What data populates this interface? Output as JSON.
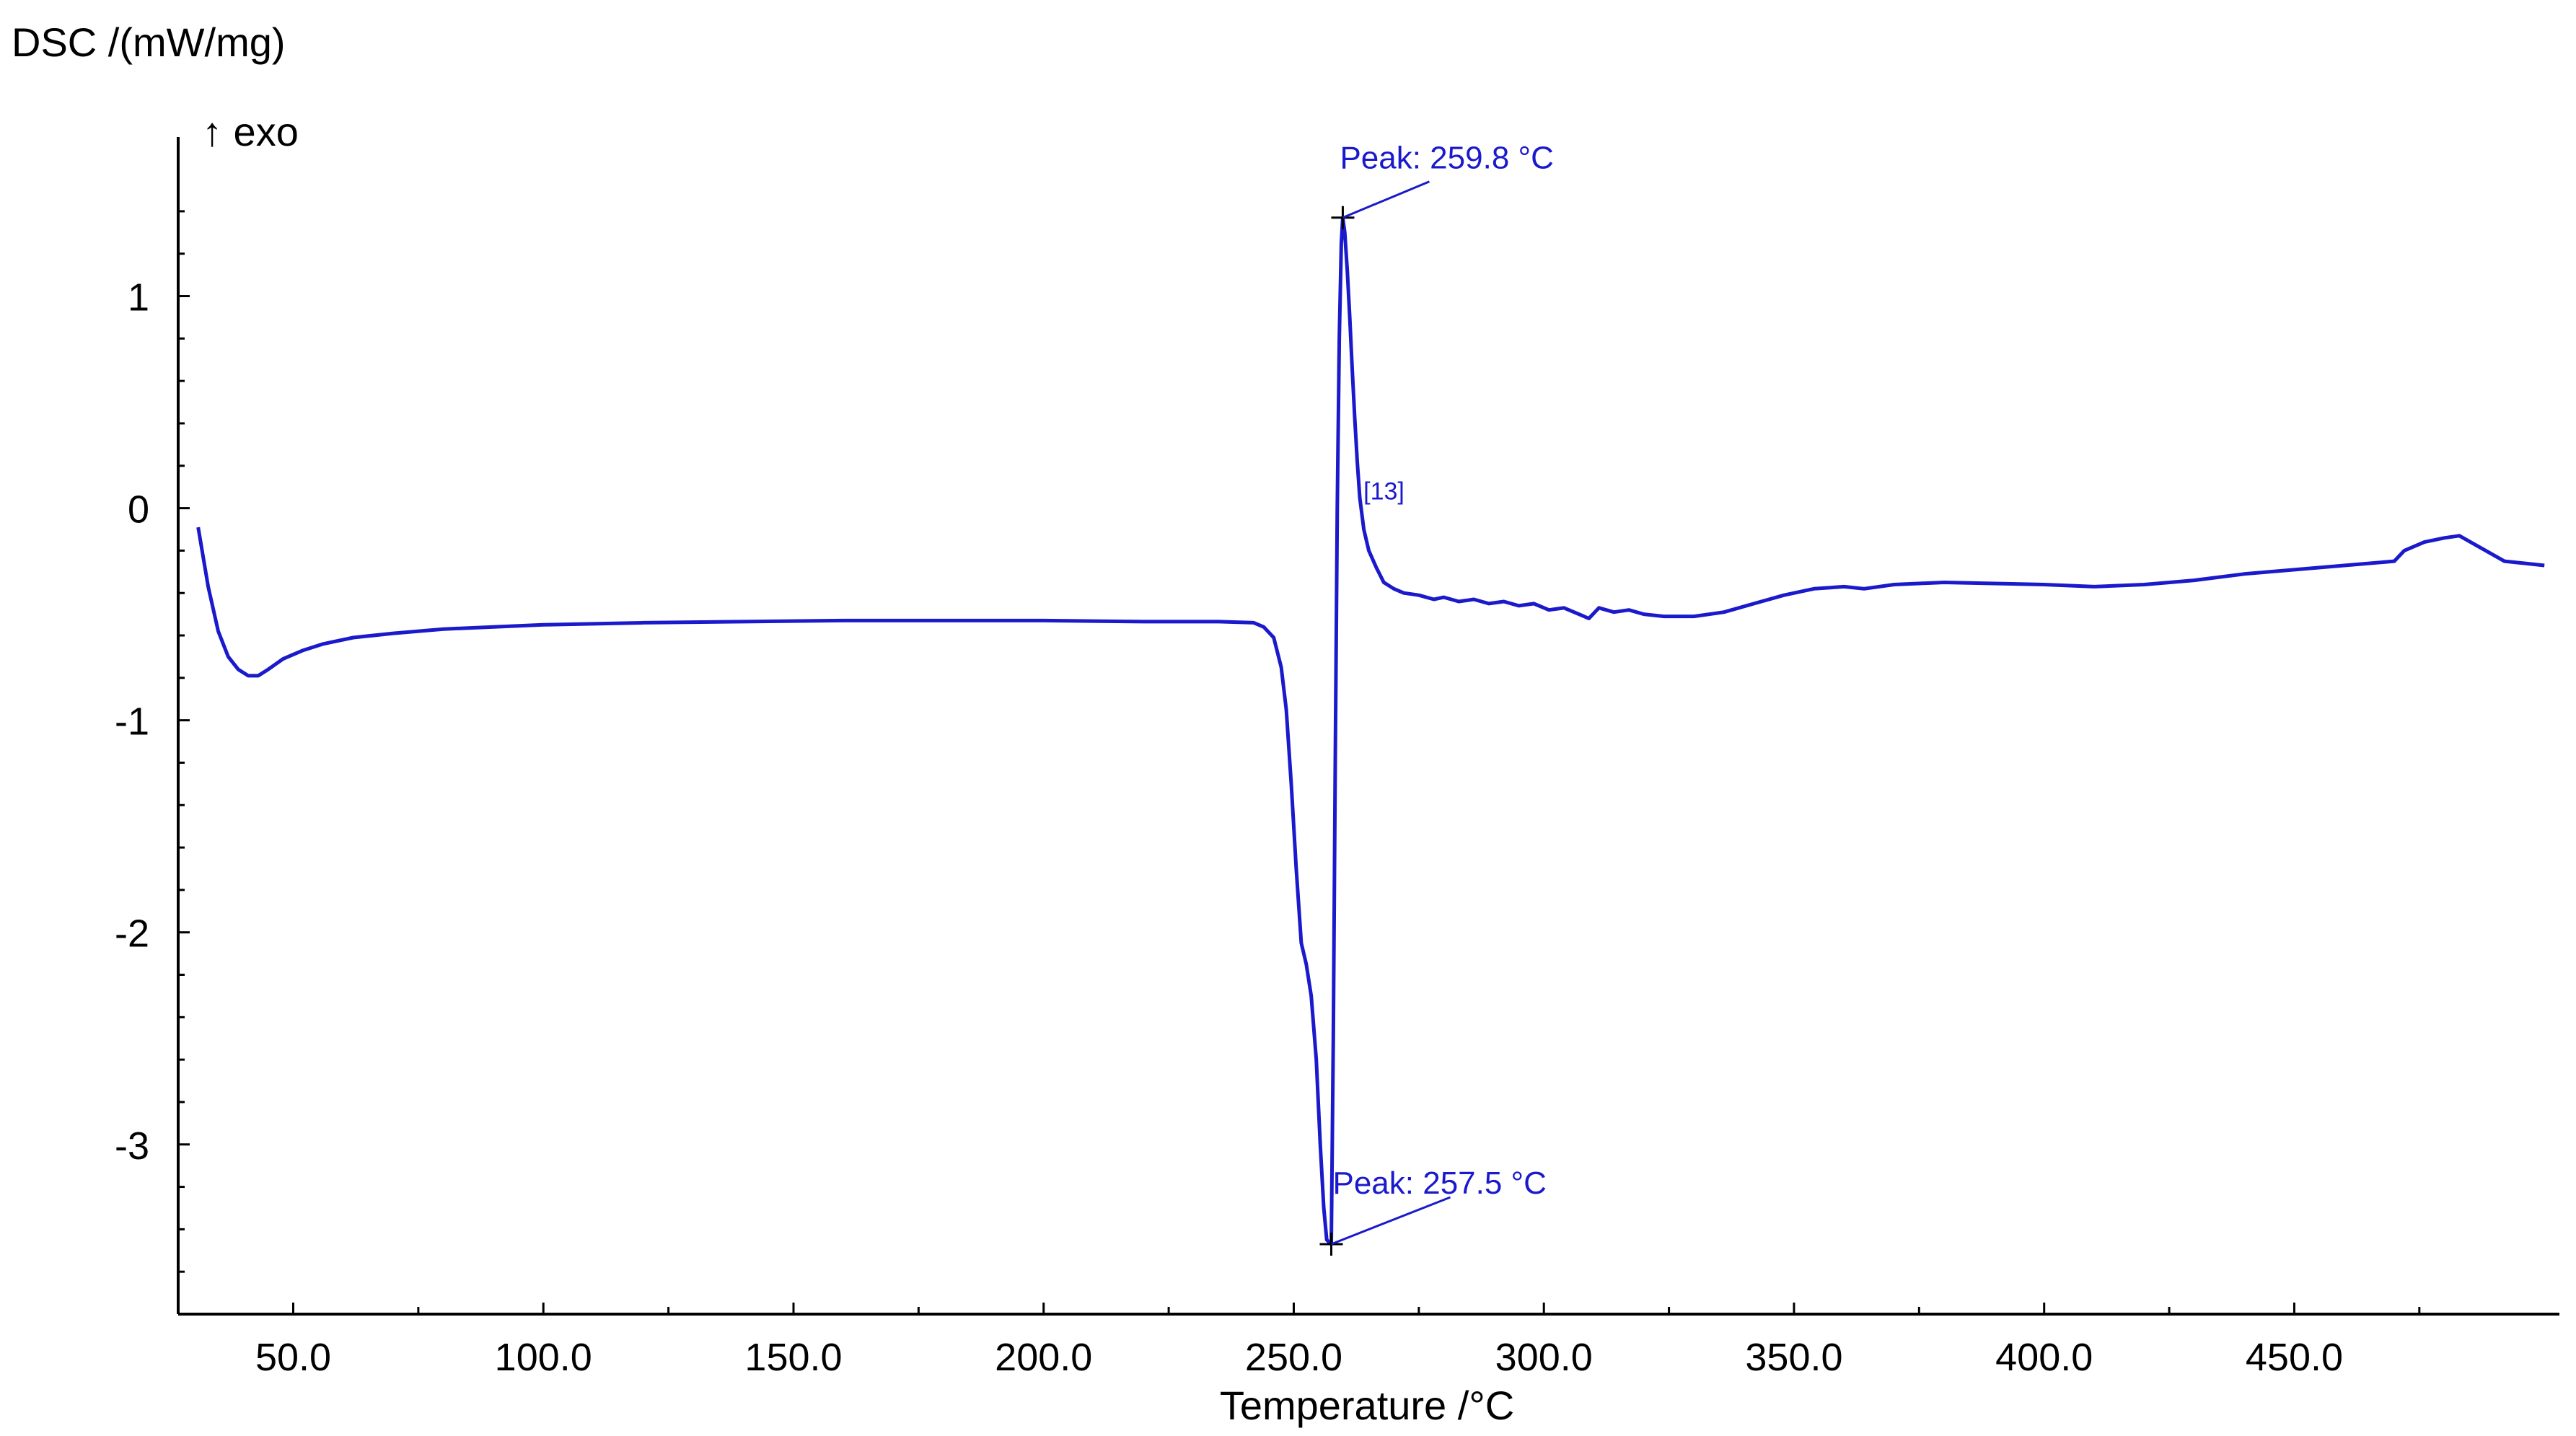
{
  "chart_data": {
    "type": "line",
    "ylabel": "DSC /(mW/mg)",
    "xlabel": "Temperature /°C",
    "direction_label": "↑ exo",
    "xlim": [
      27,
      503
    ],
    "ylim": [
      -3.8,
      1.75
    ],
    "x_ticks": [
      50.0,
      100.0,
      150.0,
      200.0,
      250.0,
      300.0,
      350.0,
      400.0,
      450.0
    ],
    "x_tick_labels": [
      "50.0",
      "100.0",
      "150.0",
      "200.0",
      "250.0",
      "300.0",
      "350.0",
      "400.0",
      "450.0"
    ],
    "y_ticks": [
      1,
      0,
      -1,
      -2,
      -3
    ],
    "y_tick_labels": [
      "1",
      "0",
      "-1",
      "-2",
      "-3"
    ],
    "grid": false,
    "line_color": "#1a1acc",
    "annotations": [
      {
        "text": "Peak: 259.8 °C",
        "x": 259.8,
        "y": 1.37
      },
      {
        "text": "Peak: 257.5 °C",
        "x": 257.5,
        "y": -3.47
      }
    ],
    "segment_marker": {
      "text": "[13]",
      "x": 262.5,
      "y": 0.0
    },
    "series": [
      {
        "points": [
          [
            31,
            -0.09
          ],
          [
            33,
            -0.37
          ],
          [
            35,
            -0.58
          ],
          [
            37,
            -0.7
          ],
          [
            39,
            -0.76
          ],
          [
            41,
            -0.79
          ],
          [
            43,
            -0.79
          ],
          [
            45,
            -0.76
          ],
          [
            48,
            -0.71
          ],
          [
            52,
            -0.67
          ],
          [
            56,
            -0.64
          ],
          [
            62,
            -0.61
          ],
          [
            70,
            -0.59
          ],
          [
            80,
            -0.57
          ],
          [
            90,
            -0.56
          ],
          [
            100,
            -0.55
          ],
          [
            120,
            -0.54
          ],
          [
            140,
            -0.535
          ],
          [
            160,
            -0.53
          ],
          [
            180,
            -0.53
          ],
          [
            200,
            -0.53
          ],
          [
            220,
            -0.535
          ],
          [
            235,
            -0.535
          ],
          [
            242,
            -0.54
          ],
          [
            244,
            -0.56
          ],
          [
            246,
            -0.61
          ],
          [
            247.5,
            -0.75
          ],
          [
            248.5,
            -0.95
          ],
          [
            249.5,
            -1.3
          ],
          [
            250.5,
            -1.7
          ],
          [
            251.5,
            -2.05
          ],
          [
            252.5,
            -2.15
          ],
          [
            253.5,
            -2.3
          ],
          [
            254.5,
            -2.6
          ],
          [
            255.3,
            -3.0
          ],
          [
            256.0,
            -3.3
          ],
          [
            256.6,
            -3.45
          ],
          [
            257.5,
            -3.47
          ],
          [
            257.9,
            -2.5
          ],
          [
            258.3,
            -1.2
          ],
          [
            258.7,
            0.0
          ],
          [
            259.1,
            0.8
          ],
          [
            259.5,
            1.25
          ],
          [
            259.8,
            1.37
          ],
          [
            260.2,
            1.3
          ],
          [
            260.7,
            1.12
          ],
          [
            261.2,
            0.9
          ],
          [
            261.7,
            0.65
          ],
          [
            262.2,
            0.42
          ],
          [
            262.7,
            0.22
          ],
          [
            263.2,
            0.05
          ],
          [
            264,
            -0.1
          ],
          [
            265,
            -0.2
          ],
          [
            266.5,
            -0.28
          ],
          [
            268,
            -0.35
          ],
          [
            270,
            -0.38
          ],
          [
            272,
            -0.4
          ],
          [
            275,
            -0.41
          ],
          [
            278,
            -0.43
          ],
          [
            280,
            -0.42
          ],
          [
            283,
            -0.44
          ],
          [
            286,
            -0.43
          ],
          [
            289,
            -0.45
          ],
          [
            292,
            -0.44
          ],
          [
            295,
            -0.46
          ],
          [
            298,
            -0.45
          ],
          [
            301,
            -0.48
          ],
          [
            304,
            -0.47
          ],
          [
            307,
            -0.5
          ],
          [
            309,
            -0.52
          ],
          [
            311,
            -0.47
          ],
          [
            314,
            -0.49
          ],
          [
            317,
            -0.48
          ],
          [
            320,
            -0.5
          ],
          [
            324,
            -0.51
          ],
          [
            330,
            -0.51
          ],
          [
            336,
            -0.49
          ],
          [
            342,
            -0.45
          ],
          [
            348,
            -0.41
          ],
          [
            354,
            -0.38
          ],
          [
            360,
            -0.37
          ],
          [
            364,
            -0.38
          ],
          [
            370,
            -0.36
          ],
          [
            380,
            -0.35
          ],
          [
            390,
            -0.355
          ],
          [
            400,
            -0.36
          ],
          [
            410,
            -0.37
          ],
          [
            420,
            -0.36
          ],
          [
            430,
            -0.34
          ],
          [
            440,
            -0.31
          ],
          [
            450,
            -0.29
          ],
          [
            460,
            -0.27
          ],
          [
            470,
            -0.25
          ],
          [
            472,
            -0.2
          ],
          [
            476,
            -0.16
          ],
          [
            480,
            -0.14
          ],
          [
            483,
            -0.13
          ],
          [
            486,
            -0.17
          ],
          [
            489,
            -0.21
          ],
          [
            492,
            -0.25
          ],
          [
            496,
            -0.26
          ],
          [
            500,
            -0.27
          ]
        ]
      }
    ]
  }
}
